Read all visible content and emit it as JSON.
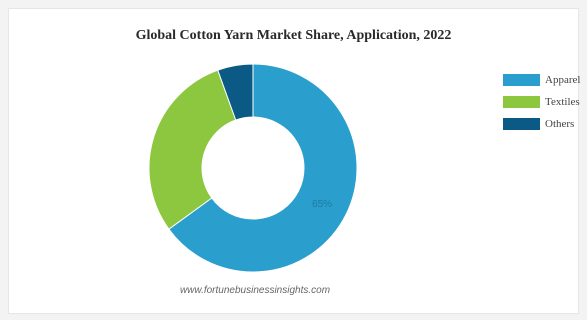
{
  "chart_data": {
    "type": "pie",
    "title": "Global Cotton Yarn Market Share, Application, 2022",
    "categories": [
      "Apparel",
      "Textiles",
      "Others"
    ],
    "values": [
      65,
      29.5,
      5.5
    ],
    "data_labels": [
      "65%",
      "",
      ""
    ],
    "colors": [
      "#2a9fcd",
      "#8dc63f",
      "#0b5a85"
    ],
    "donut": true,
    "legend_position": "top-right"
  },
  "watermark": "www.fortunebusinessinsights.com"
}
